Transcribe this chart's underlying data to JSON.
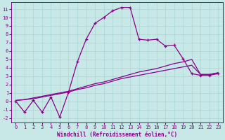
{
  "xlabel": "Windchill (Refroidissement éolien,°C)",
  "background_color": "#c8e8e8",
  "line_color": "#880088",
  "xlim": [
    -0.5,
    23.5
  ],
  "ylim": [
    -2.5,
    11.8
  ],
  "xticks": [
    0,
    1,
    2,
    3,
    4,
    5,
    6,
    7,
    8,
    9,
    10,
    11,
    12,
    13,
    14,
    15,
    16,
    17,
    18,
    19,
    20,
    21,
    22,
    23
  ],
  "yticks": [
    -2,
    -1,
    0,
    1,
    2,
    3,
    4,
    5,
    6,
    7,
    8,
    9,
    10,
    11
  ],
  "series1_x": [
    0,
    1,
    2,
    3,
    4,
    5,
    6,
    7,
    8,
    9,
    10,
    11,
    12,
    13,
    14,
    15,
    16,
    17,
    18,
    19,
    20,
    21,
    22,
    23
  ],
  "series1_y": [
    0.0,
    -1.3,
    0.1,
    -1.3,
    0.5,
    -1.9,
    1.1,
    4.7,
    7.4,
    9.3,
    10.0,
    10.8,
    11.2,
    11.2,
    7.4,
    7.3,
    7.4,
    6.6,
    6.7,
    5.1,
    3.3,
    3.1,
    3.1,
    3.3
  ],
  "series2_x": [
    0,
    1,
    2,
    3,
    4,
    5,
    6,
    7,
    8,
    9,
    10,
    11,
    12,
    13,
    14,
    15,
    16,
    17,
    18,
    19,
    20,
    21,
    22,
    23
  ],
  "series2_y": [
    0.1,
    0.2,
    0.3,
    0.5,
    0.7,
    0.9,
    1.1,
    1.4,
    1.6,
    1.9,
    2.1,
    2.4,
    2.7,
    2.9,
    3.1,
    3.3,
    3.5,
    3.7,
    3.9,
    4.1,
    4.3,
    3.2,
    3.2,
    3.4
  ],
  "series3_x": [
    0,
    1,
    2,
    3,
    4,
    5,
    6,
    7,
    8,
    9,
    10,
    11,
    12,
    13,
    14,
    15,
    16,
    17,
    18,
    19,
    20,
    21,
    22,
    23
  ],
  "series3_y": [
    0.1,
    0.2,
    0.4,
    0.6,
    0.8,
    1.0,
    1.2,
    1.5,
    1.8,
    2.1,
    2.3,
    2.6,
    2.9,
    3.2,
    3.5,
    3.7,
    3.9,
    4.2,
    4.5,
    4.7,
    5.0,
    3.2,
    3.2,
    3.4
  ],
  "xlabel_fontsize": 5.5,
  "tick_fontsize": 5.0,
  "grid_color": "#a8d4d4",
  "spine_color": "#880088"
}
